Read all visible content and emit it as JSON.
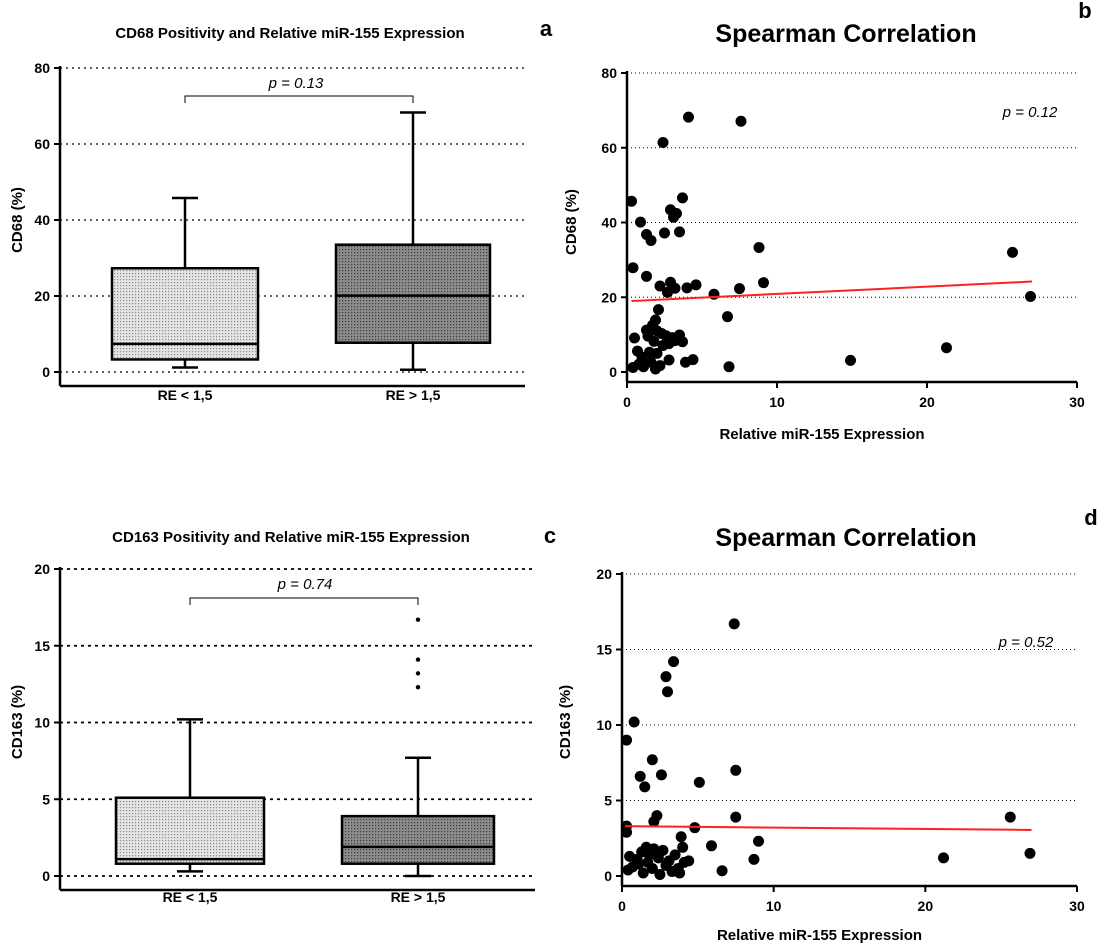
{
  "chart_data": [
    {
      "type": "box",
      "panel": "a",
      "title": "CD68 Positivity and Relative miR-155 Expression",
      "ylabel": "CD68 (%)",
      "ylim": [
        0,
        80
      ],
      "yticks": [
        "0",
        "20",
        "40",
        "60",
        "80"
      ],
      "grid": true,
      "annotation": "p = 0.13",
      "categories": [
        "RE < 1,5",
        "RE > 1,5"
      ],
      "boxes": [
        {
          "category": "RE < 1,5",
          "min": 1.2,
          "q1": 3.3,
          "median": 7.4,
          "q3": 27.3,
          "max": 45.8,
          "outliers": [],
          "color": "#d0d0d0"
        },
        {
          "category": "RE > 1,5",
          "min": 0.6,
          "q1": 7.7,
          "median": 20.1,
          "q3": 33.5,
          "max": 68.3,
          "outliers": [],
          "color": "#7a7a7a"
        }
      ]
    },
    {
      "type": "scatter",
      "panel": "b",
      "title": "Spearman Correlation",
      "xlabel": "Relative miR-155 Expression",
      "ylabel": "CD68 (%)",
      "xlim": [
        0,
        30
      ],
      "ylim": [
        0,
        80
      ],
      "xticks": [
        "0",
        "10",
        "20",
        "30"
      ],
      "yticks": [
        "0",
        "20",
        "40",
        "60",
        "80"
      ],
      "grid": true,
      "annotation": "p = 0.12",
      "trendline": {
        "x": [
          0.3,
          27
        ],
        "y": [
          19.0,
          24.2
        ],
        "color": "#ff2020"
      },
      "points": [
        [
          0.3,
          45.7
        ],
        [
          0.4,
          27.9
        ],
        [
          0.9,
          40.1
        ],
        [
          1.3,
          36.8
        ],
        [
          1.6,
          35.2
        ],
        [
          1.3,
          25.6
        ],
        [
          2.4,
          61.4
        ],
        [
          2.5,
          37.2
        ],
        [
          2.9,
          43.4
        ],
        [
          3.1,
          41.4
        ],
        [
          3.3,
          42.4
        ],
        [
          3.5,
          37.5
        ],
        [
          3.7,
          46.6
        ],
        [
          4.1,
          68.2
        ],
        [
          7.6,
          67.1
        ],
        [
          2.2,
          23.0
        ],
        [
          2.9,
          24.0
        ],
        [
          3.2,
          22.4
        ],
        [
          4.0,
          22.5
        ],
        [
          4.6,
          23.3
        ],
        [
          5.8,
          20.8
        ],
        [
          7.5,
          22.3
        ],
        [
          8.8,
          33.3
        ],
        [
          9.1,
          23.9
        ],
        [
          2.7,
          21.3
        ],
        [
          25.7,
          32.0
        ],
        [
          26.9,
          20.2
        ],
        [
          0.5,
          9.1
        ],
        [
          0.7,
          5.6
        ],
        [
          1.0,
          4.0
        ],
        [
          1.3,
          11.2
        ],
        [
          1.4,
          9.6
        ],
        [
          1.5,
          5.3
        ],
        [
          1.8,
          8.2
        ],
        [
          1.9,
          13.9
        ],
        [
          2.0,
          11.0
        ],
        [
          2.1,
          16.7
        ],
        [
          2.3,
          10.3
        ],
        [
          2.4,
          7.1
        ],
        [
          2.6,
          9.7
        ],
        [
          2.8,
          7.6
        ],
        [
          3.0,
          9.2
        ],
        [
          3.2,
          8.4
        ],
        [
          3.5,
          9.9
        ],
        [
          3.7,
          8.1
        ],
        [
          0.4,
          1.2
        ],
        [
          0.8,
          2.1
        ],
        [
          1.1,
          1.4
        ],
        [
          1.6,
          2.6
        ],
        [
          1.9,
          0.8
        ],
        [
          2.2,
          1.7
        ],
        [
          2.8,
          3.2
        ],
        [
          3.9,
          2.6
        ],
        [
          4.4,
          3.3
        ],
        [
          6.7,
          14.8
        ],
        [
          6.8,
          1.4
        ],
        [
          14.9,
          3.1
        ],
        [
          21.3,
          6.5
        ],
        [
          1.7,
          12.5
        ],
        [
          2.0,
          5.0
        ]
      ]
    },
    {
      "type": "box",
      "panel": "c",
      "title": "CD163 Positivity and Relative miR-155 Expression",
      "ylabel": "CD163 (%)",
      "ylim": [
        0,
        20
      ],
      "yticks": [
        "0",
        "5",
        "10",
        "15",
        "20"
      ],
      "grid": true,
      "annotation": "p = 0.74",
      "categories": [
        "RE < 1,5",
        "RE > 1,5"
      ],
      "boxes": [
        {
          "category": "RE < 1,5",
          "min": 0.3,
          "q1": 0.8,
          "median": 1.1,
          "q3": 5.1,
          "max": 10.2,
          "outliers": [],
          "color": "#d0d0d0"
        },
        {
          "category": "RE > 1,5",
          "min": 0.0,
          "q1": 0.8,
          "median": 1.9,
          "q3": 3.9,
          "max": 7.7,
          "outliers": [
            12.3,
            13.2,
            14.1,
            16.7
          ],
          "color": "#7a7a7a"
        }
      ]
    },
    {
      "type": "scatter",
      "panel": "d",
      "title": "Spearman Correlation",
      "xlabel": "Relative miR-155 Expression",
      "ylabel": "CD163 (%)",
      "xlim": [
        0,
        30
      ],
      "ylim": [
        0,
        20
      ],
      "xticks": [
        "0",
        "10",
        "20",
        "30"
      ],
      "yticks": [
        "0",
        "5",
        "10",
        "15",
        "20"
      ],
      "grid": true,
      "annotation": "p = 0.52",
      "trendline": {
        "x": [
          0.2,
          27
        ],
        "y": [
          3.3,
          3.05
        ],
        "color": "#ff2020"
      },
      "points": [
        [
          0.3,
          9.0
        ],
        [
          0.8,
          10.2
        ],
        [
          7.4,
          16.7
        ],
        [
          3.4,
          14.2
        ],
        [
          2.9,
          13.2
        ],
        [
          3.0,
          12.2
        ],
        [
          2.0,
          7.7
        ],
        [
          2.6,
          6.7
        ],
        [
          1.2,
          6.6
        ],
        [
          1.5,
          5.9
        ],
        [
          7.5,
          7.0
        ],
        [
          5.1,
          6.2
        ],
        [
          0.3,
          3.3
        ],
        [
          0.3,
          2.9
        ],
        [
          2.1,
          3.6
        ],
        [
          2.3,
          4.0
        ],
        [
          7.5,
          3.9
        ],
        [
          4.8,
          3.2
        ],
        [
          3.9,
          2.6
        ],
        [
          5.9,
          2.0
        ],
        [
          9.0,
          2.3
        ],
        [
          8.7,
          1.1
        ],
        [
          25.6,
          3.9
        ],
        [
          26.9,
          1.5
        ],
        [
          21.2,
          1.2
        ],
        [
          0.5,
          1.3
        ],
        [
          1.0,
          1.1
        ],
        [
          1.3,
          1.6
        ],
        [
          1.6,
          1.9
        ],
        [
          1.8,
          1.4
        ],
        [
          2.1,
          1.8
        ],
        [
          2.4,
          1.2
        ],
        [
          2.7,
          1.7
        ],
        [
          3.1,
          1.0
        ],
        [
          3.5,
          1.4
        ],
        [
          4.0,
          1.9
        ],
        [
          4.4,
          1.0
        ],
        [
          0.4,
          0.4
        ],
        [
          0.7,
          0.6
        ],
        [
          1.1,
          0.8
        ],
        [
          1.4,
          0.2
        ],
        [
          1.7,
          0.9
        ],
        [
          2.0,
          0.5
        ],
        [
          2.5,
          0.1
        ],
        [
          2.9,
          0.7
        ],
        [
          3.3,
          0.3
        ],
        [
          3.7,
          0.5
        ],
        [
          4.1,
          0.9
        ],
        [
          6.6,
          0.35
        ],
        [
          3.8,
          0.2
        ]
      ]
    }
  ],
  "panel_letters": [
    "a",
    "b",
    "c",
    "d"
  ]
}
